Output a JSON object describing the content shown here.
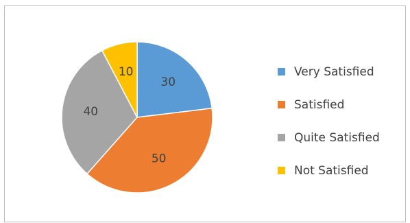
{
  "chart_data": {
    "type": "pie",
    "categories": [
      "Very Satisfied",
      "Satisfied",
      "Quite Satisfied",
      "Not Satisfied"
    ],
    "values": [
      30,
      50,
      40,
      10
    ],
    "data_labels": [
      "30",
      "50",
      "40",
      "10"
    ],
    "colors": [
      "#5B9BD5",
      "#ED7D31",
      "#A5A5A5",
      "#FFC000"
    ],
    "start_angle_deg": 0,
    "direction": "clockwise",
    "legend_position": "right",
    "title": ""
  }
}
